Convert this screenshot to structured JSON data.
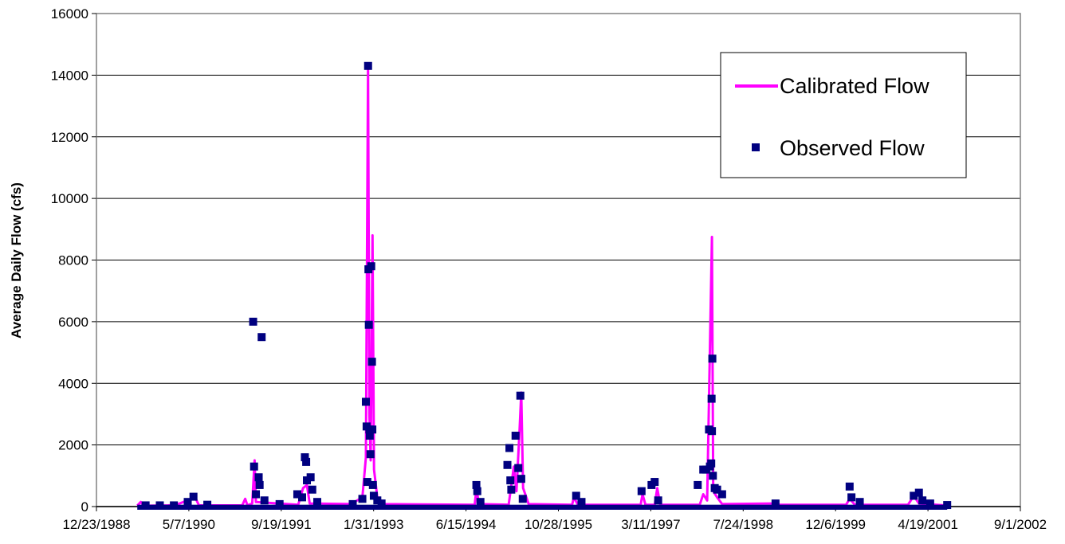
{
  "chart_data": {
    "type": "line",
    "title": "",
    "xlabel": "",
    "ylabel": "Average Daily Flow (cfs)",
    "ylim": [
      0,
      16000
    ],
    "yticks": [
      "0",
      "2000",
      "4000",
      "6000",
      "8000",
      "10000",
      "12000",
      "14000",
      "16000"
    ],
    "xlim": [
      "1988-12-23",
      "2002-09-01"
    ],
    "xticks": [
      "12/23/1988",
      "5/7/1990",
      "9/19/1991",
      "1/31/1993",
      "6/15/1994",
      "10/28/1995",
      "3/11/1997",
      "7/24/1998",
      "12/6/1999",
      "4/19/2001",
      "9/1/2002"
    ],
    "grid": true,
    "legend_position": "top-right",
    "colors": {
      "calibrated": "#ff00ff",
      "observed": "#000080",
      "grid": "#000000",
      "axis": "#808080"
    },
    "series": [
      {
        "name": "Calibrated Flow",
        "style": "line",
        "points": [
          [
            "1989-08-01",
            30
          ],
          [
            "1989-08-20",
            150
          ],
          [
            "1989-09-05",
            25
          ],
          [
            "1990-01-15",
            40
          ],
          [
            "1990-03-01",
            60
          ],
          [
            "1990-06-10",
            300
          ],
          [
            "1990-07-01",
            40
          ],
          [
            "1991-02-20",
            40
          ],
          [
            "1991-03-08",
            250
          ],
          [
            "1991-03-20",
            40
          ],
          [
            "1991-04-15",
            100
          ],
          [
            "1991-04-28",
            1500
          ],
          [
            "1991-05-05",
            150
          ],
          [
            "1991-12-20",
            60
          ],
          [
            "1992-01-15",
            600
          ],
          [
            "1992-02-05",
            700
          ],
          [
            "1992-02-20",
            100
          ],
          [
            "1992-10-01",
            80
          ],
          [
            "1992-12-01",
            300
          ],
          [
            "1992-12-20",
            1600
          ],
          [
            "1993-01-01",
            14300
          ],
          [
            "1993-01-08",
            3000
          ],
          [
            "1993-01-15",
            1500
          ],
          [
            "1993-01-25",
            8800
          ],
          [
            "1993-02-02",
            1200
          ],
          [
            "1993-02-20",
            300
          ],
          [
            "1993-04-01",
            80
          ],
          [
            "1994-08-01",
            60
          ],
          [
            "1994-08-10",
            550
          ],
          [
            "1994-08-25",
            80
          ],
          [
            "1995-02-01",
            60
          ],
          [
            "1995-03-01",
            1300
          ],
          [
            "1995-03-15",
            500
          ],
          [
            "1995-04-01",
            2500
          ],
          [
            "1995-04-10",
            3700
          ],
          [
            "1995-04-20",
            600
          ],
          [
            "1995-05-20",
            80
          ],
          [
            "1996-01-10",
            60
          ],
          [
            "1996-01-20",
            300
          ],
          [
            "1996-02-10",
            60
          ],
          [
            "1997-01-15",
            60
          ],
          [
            "1997-01-25",
            400
          ],
          [
            "1997-02-10",
            60
          ],
          [
            "1997-04-01",
            60
          ],
          [
            "1997-04-15",
            600
          ],
          [
            "1997-05-01",
            60
          ],
          [
            "1997-12-01",
            60
          ],
          [
            "1997-12-20",
            400
          ],
          [
            "1998-01-10",
            200
          ],
          [
            "1998-02-05",
            8750
          ],
          [
            "1998-02-12",
            500
          ],
          [
            "1998-03-05",
            300
          ],
          [
            "1998-04-01",
            80
          ],
          [
            "1999-01-01",
            100
          ],
          [
            "1999-02-01",
            60
          ],
          [
            "2000-02-01",
            60
          ],
          [
            "2000-02-20",
            250
          ],
          [
            "2000-03-20",
            60
          ],
          [
            "2001-01-01",
            60
          ],
          [
            "2001-02-01",
            350
          ],
          [
            "2001-03-01",
            100
          ],
          [
            "2001-08-01",
            30
          ]
        ]
      },
      {
        "name": "Observed Flow",
        "style": "markers",
        "points": [
          [
            "1989-09-15",
            40
          ],
          [
            "1989-12-01",
            40
          ],
          [
            "1990-02-15",
            40
          ],
          [
            "1990-05-01",
            150
          ],
          [
            "1990-06-01",
            320
          ],
          [
            "1990-08-15",
            60
          ],
          [
            "1991-04-20",
            6000
          ],
          [
            "1991-04-25",
            1300
          ],
          [
            "1991-05-05",
            400
          ],
          [
            "1991-05-20",
            950
          ],
          [
            "1991-05-25",
            700
          ],
          [
            "1991-06-05",
            5500
          ],
          [
            "1991-06-20",
            200
          ],
          [
            "1991-09-10",
            80
          ],
          [
            "1991-12-15",
            400
          ],
          [
            "1992-01-10",
            300
          ],
          [
            "1992-01-25",
            1600
          ],
          [
            "1992-02-01",
            1450
          ],
          [
            "1992-02-05",
            850
          ],
          [
            "1992-02-25",
            950
          ],
          [
            "1992-03-05",
            550
          ],
          [
            "1992-04-01",
            150
          ],
          [
            "1992-10-10",
            80
          ],
          [
            "1992-12-01",
            250
          ],
          [
            "1992-12-20",
            3400
          ],
          [
            "1992-12-24",
            2600
          ],
          [
            "1992-12-28",
            800
          ],
          [
            "1993-01-01",
            14300
          ],
          [
            "1993-01-03",
            7700
          ],
          [
            "1993-01-05",
            5900
          ],
          [
            "1993-01-08",
            2500
          ],
          [
            "1993-01-10",
            2300
          ],
          [
            "1993-01-14",
            1700
          ],
          [
            "1993-01-18",
            7800
          ],
          [
            "1993-01-22",
            4700
          ],
          [
            "1993-01-24",
            2500
          ],
          [
            "1993-01-27",
            700
          ],
          [
            "1993-02-01",
            350
          ],
          [
            "1993-02-20",
            200
          ],
          [
            "1993-03-15",
            100
          ],
          [
            "1994-08-10",
            700
          ],
          [
            "1994-08-15",
            500
          ],
          [
            "1994-09-01",
            150
          ],
          [
            "1995-01-25",
            1350
          ],
          [
            "1995-02-05",
            1900
          ],
          [
            "1995-02-10",
            850
          ],
          [
            "1995-02-15",
            550
          ],
          [
            "1995-03-10",
            2300
          ],
          [
            "1995-03-25",
            1250
          ],
          [
            "1995-04-05",
            3600
          ],
          [
            "1995-04-10",
            900
          ],
          [
            "1995-04-18",
            250
          ],
          [
            "1996-02-01",
            350
          ],
          [
            "1996-03-01",
            150
          ],
          [
            "1997-01-20",
            500
          ],
          [
            "1997-03-15",
            700
          ],
          [
            "1997-04-01",
            800
          ],
          [
            "1997-04-20",
            200
          ],
          [
            "1997-11-20",
            700
          ],
          [
            "1997-12-20",
            1200
          ],
          [
            "1998-01-05",
            1200
          ],
          [
            "1998-01-20",
            2500
          ],
          [
            "1998-01-25",
            1300
          ],
          [
            "1998-02-01",
            1400
          ],
          [
            "1998-02-03",
            3500
          ],
          [
            "1998-02-05",
            2450
          ],
          [
            "1998-02-07",
            4800
          ],
          [
            "1998-02-10",
            1000
          ],
          [
            "1998-02-20",
            600
          ],
          [
            "1998-03-05",
            550
          ],
          [
            "1998-04-01",
            400
          ],
          [
            "1999-01-15",
            100
          ],
          [
            "2000-02-20",
            650
          ],
          [
            "2000-03-01",
            300
          ],
          [
            "2000-04-15",
            150
          ],
          [
            "2001-02-01",
            350
          ],
          [
            "2001-03-01",
            450
          ],
          [
            "2001-03-20",
            200
          ],
          [
            "2001-05-01",
            100
          ],
          [
            "2001-08-01",
            50
          ]
        ]
      }
    ]
  }
}
